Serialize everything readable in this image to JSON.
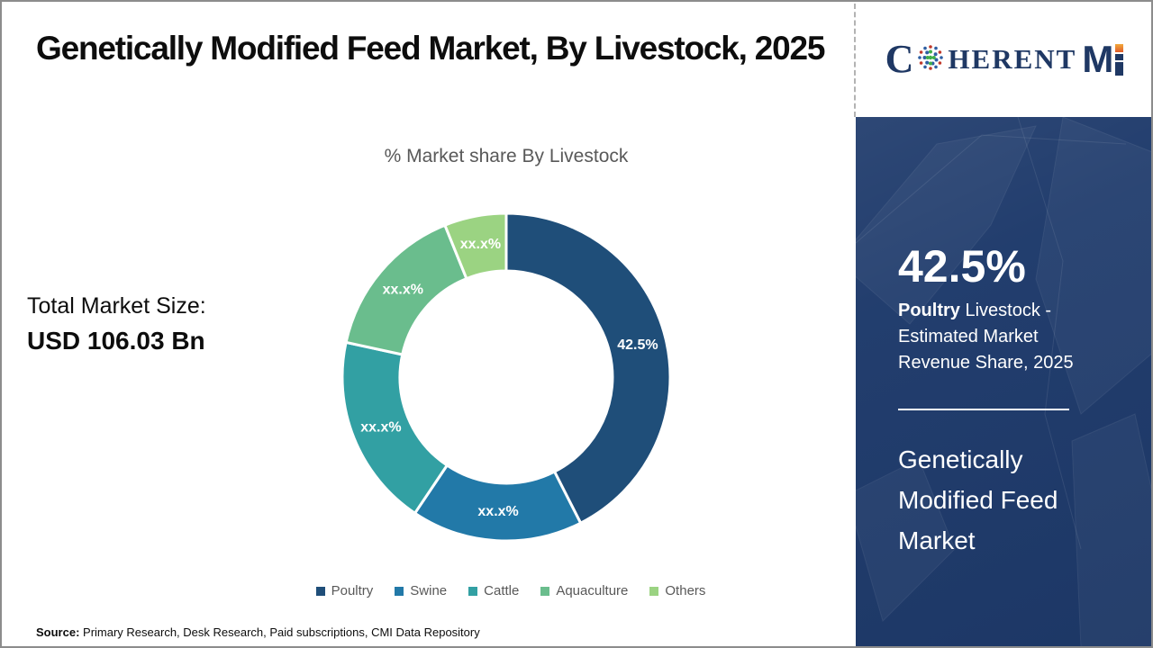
{
  "page": {
    "title": "Genetically Modified Feed Market, By Livestock, 2025",
    "source_label": "Source:",
    "source_text": " Primary Research, Desk Research, Paid subscriptions, CMI Data Repository"
  },
  "header": {
    "logo": {
      "c": "C",
      "herent": "HERENT",
      "m": "M"
    }
  },
  "left_panel": {
    "total_label": "Total Market Size:",
    "total_value": "USD 106.03 Bn"
  },
  "chart_data": {
    "type": "pie",
    "donut": true,
    "title": "% Market share By Livestock",
    "categories": [
      "Poultry",
      "Swine",
      "Cattle",
      "Aquaculture",
      "Others"
    ],
    "values": [
      42.5,
      16.9,
      19.0,
      15.5,
      6.1
    ],
    "labels": [
      "42.5%",
      "xx.x%",
      "xx.x%",
      "xx.x%",
      "xx.x%"
    ],
    "colors": [
      "#1f4e79",
      "#2279a8",
      "#32a0a3",
      "#6abd8d",
      "#9bd382"
    ],
    "inner_radius_ratio": 0.65,
    "legend_position": "bottom",
    "legend_text_color": "#595959",
    "label_color": "#ffffff"
  },
  "sidebar": {
    "highlight_value": "42.5%",
    "highlight_bold": "Poultry",
    "highlight_rest": " Livestock - Estimated Market Revenue Share, 2025",
    "market_name": "Genetically Modified Feed Market",
    "background": "#1e3a6b"
  }
}
